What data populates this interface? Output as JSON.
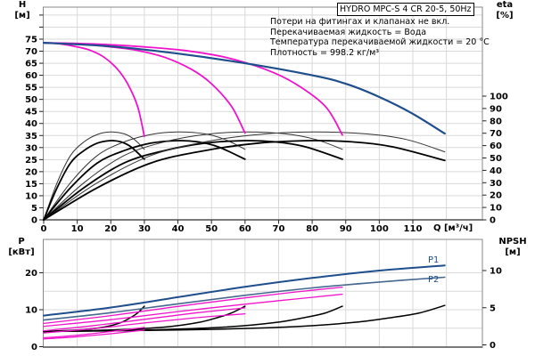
{
  "title": "HYDRO MPC-S 4 CR 20-5, 50Hz",
  "annotations": [
    "Потери на фитингах и клапанах не вкл.",
    "Перекачиваемая жидкость = Вода",
    "Температура перекачиваемой жидкости = 20 °C",
    "Плотность = 998.2 кг/м³"
  ],
  "axes": {
    "h_label": "H",
    "h_unit": "[м]",
    "eta_label": "eta",
    "eta_unit": "[%]",
    "q_label": "Q [м³/ч]",
    "p_label": "P",
    "p_unit": "[кВт]",
    "npsh_label": "NPSH",
    "npsh_unit": "[м]"
  },
  "curve_labels": {
    "p1": "P1",
    "p2": "P2"
  },
  "colors": {
    "head_curve": "#1f4e8c",
    "reduced_curve": "#f013cb",
    "p2_curve": "#46688f",
    "eta_npsh_curve": "#000000",
    "grid": "#d9d9d9",
    "spine": "#888888"
  },
  "chart_data": [
    {
      "type": "line",
      "title": "HYDRO MPC-S 4 CR 20-5, 50Hz",
      "xlabel": "Q [м³/ч]",
      "ylabel_left": "H [м]",
      "ylabel_right": "eta [%]",
      "xlim": [
        0,
        130
      ],
      "ylim_left": [
        0,
        88
      ],
      "ylim_right": [
        0,
        172
      ],
      "grid": true,
      "x_ticks": [
        0,
        10,
        20,
        30,
        40,
        50,
        60,
        70,
        80,
        90,
        100,
        110
      ],
      "y_ticks_left": [
        0,
        5,
        10,
        15,
        20,
        25,
        30,
        35,
        40,
        45,
        50,
        55,
        60,
        65,
        70,
        75
      ],
      "y_ticks_left_minor": [
        80,
        85
      ],
      "y_ticks_right": [
        0,
        10,
        20,
        30,
        40,
        50,
        60,
        70,
        80,
        90,
        100
      ],
      "series": [
        {
          "name": "eta-1-pump-thin",
          "axis": "right",
          "color": "#333333",
          "width": 1,
          "points": [
            [
              0,
              0
            ],
            [
              4,
              30
            ],
            [
              8,
              52
            ],
            [
              12,
              63
            ],
            [
              16,
              69
            ],
            [
              20,
              71
            ],
            [
              24,
              69.5
            ],
            [
              27,
              65
            ],
            [
              30,
              57
            ]
          ]
        },
        {
          "name": "eta-1-pump-thick",
          "axis": "right",
          "color": "#000000",
          "width": 1.8,
          "points": [
            [
              0,
              0
            ],
            [
              4,
              26
            ],
            [
              8,
              46
            ],
            [
              12,
              56
            ],
            [
              16,
              62
            ],
            [
              20,
              64
            ],
            [
              23,
              63
            ],
            [
              26,
              59
            ],
            [
              30,
              49
            ]
          ]
        },
        {
          "name": "eta-2-pumps-thin",
          "axis": "right",
          "color": "#333333",
          "width": 1,
          "points": [
            [
              0,
              0
            ],
            [
              8,
              30
            ],
            [
              16,
              52
            ],
            [
              24,
              63
            ],
            [
              32,
              69
            ],
            [
              40,
              71
            ],
            [
              48,
              69.5
            ],
            [
              54,
              65
            ],
            [
              60,
              57
            ]
          ]
        },
        {
          "name": "eta-2-pumps-thick",
          "axis": "right",
          "color": "#000000",
          "width": 1.8,
          "points": [
            [
              0,
              0
            ],
            [
              8,
              26
            ],
            [
              16,
              46
            ],
            [
              24,
              56
            ],
            [
              32,
              62
            ],
            [
              40,
              64
            ],
            [
              46,
              63
            ],
            [
              52,
              59
            ],
            [
              60,
              49
            ]
          ]
        },
        {
          "name": "eta-3-pumps-thin",
          "axis": "right",
          "color": "#333333",
          "width": 1,
          "points": [
            [
              0,
              0
            ],
            [
              12,
              30
            ],
            [
              24,
              52
            ],
            [
              36,
              63
            ],
            [
              48,
              69
            ],
            [
              60,
              71
            ],
            [
              72,
              69.5
            ],
            [
              81,
              65
            ],
            [
              89,
              57
            ]
          ]
        },
        {
          "name": "eta-3-pumps-thick",
          "axis": "right",
          "color": "#000000",
          "width": 1.8,
          "points": [
            [
              0,
              0
            ],
            [
              12,
              26
            ],
            [
              24,
              46
            ],
            [
              36,
              56
            ],
            [
              48,
              62
            ],
            [
              60,
              64
            ],
            [
              69,
              63
            ],
            [
              78,
              59
            ],
            [
              89,
              49
            ]
          ]
        },
        {
          "name": "eta-4-pumps-thin",
          "axis": "right",
          "color": "#333333",
          "width": 1,
          "points": [
            [
              0,
              0
            ],
            [
              16,
              30
            ],
            [
              32,
              52
            ],
            [
              48,
              63
            ],
            [
              64,
              69
            ],
            [
              80,
              71
            ],
            [
              96,
              69.5
            ],
            [
              108,
              65
            ],
            [
              119.5,
              55
            ]
          ]
        },
        {
          "name": "eta-4-pumps-thick",
          "axis": "right",
          "color": "#000000",
          "width": 1.8,
          "points": [
            [
              0,
              0
            ],
            [
              16,
              26
            ],
            [
              32,
              46
            ],
            [
              48,
              56
            ],
            [
              64,
              62
            ],
            [
              80,
              64
            ],
            [
              92,
              63
            ],
            [
              104,
              59
            ],
            [
              119.5,
              48
            ]
          ]
        },
        {
          "name": "head-1-pump",
          "axis": "left",
          "color": "#f013cb",
          "width": 1.8,
          "points": [
            [
              0,
              73.5
            ],
            [
              5,
              73
            ],
            [
              10,
              71.8
            ],
            [
              14,
              70.3
            ],
            [
              18,
              67.5
            ],
            [
              22,
              62.5
            ],
            [
              25,
              56.5
            ],
            [
              28,
              47
            ],
            [
              30,
              34.6
            ]
          ]
        },
        {
          "name": "head-2-pumps",
          "axis": "left",
          "color": "#f013cb",
          "width": 1.8,
          "points": [
            [
              0,
              73.5
            ],
            [
              10,
              73
            ],
            [
              20,
              71.8
            ],
            [
              28,
              70.3
            ],
            [
              36,
              67.5
            ],
            [
              44,
              62.5
            ],
            [
              50,
              56.5
            ],
            [
              56,
              47
            ],
            [
              60,
              36
            ]
          ]
        },
        {
          "name": "head-3-pumps",
          "axis": "left",
          "color": "#f013cb",
          "width": 1.8,
          "points": [
            [
              0,
              73.5
            ],
            [
              15,
              73
            ],
            [
              30,
              71.8
            ],
            [
              42,
              70.3
            ],
            [
              54,
              67.5
            ],
            [
              66,
              62.5
            ],
            [
              75,
              56.5
            ],
            [
              84,
              47
            ],
            [
              89,
              35.2
            ]
          ]
        },
        {
          "name": "head-4-pumps",
          "axis": "left",
          "color": "#1f4e8c",
          "width": 2.2,
          "points": [
            [
              0,
              73.5
            ],
            [
              20,
              72
            ],
            [
              40,
              69
            ],
            [
              60,
              65
            ],
            [
              80,
              60
            ],
            [
              90,
              56.5
            ],
            [
              100,
              51
            ],
            [
              110,
              44
            ],
            [
              119.5,
              35.8
            ]
          ]
        }
      ]
    },
    {
      "type": "line",
      "xlabel": "",
      "ylabel_left": "P [кВт]",
      "ylabel_right": "NPSH [м]",
      "xlim": [
        0,
        130
      ],
      "ylim_left": [
        0,
        29
      ],
      "ylim_right": [
        0,
        14.5
      ],
      "grid": true,
      "x_ticks": [],
      "y_ticks_left": [
        0,
        10,
        20
      ],
      "y_ticks_right": [
        0,
        5,
        10
      ],
      "series": [
        {
          "name": "npsh-1-pump",
          "axis": "right",
          "color": "#000000",
          "width": 1.5,
          "points": [
            [
              0,
              1.8
            ],
            [
              10,
              2.0
            ],
            [
              18,
              2.4
            ],
            [
              23,
              3.0
            ],
            [
              26,
              3.7
            ],
            [
              28,
              4.3
            ],
            [
              30,
              5.2
            ]
          ]
        },
        {
          "name": "npsh-2-pumps",
          "axis": "right",
          "color": "#000000",
          "width": 1.5,
          "points": [
            [
              0,
              1.8
            ],
            [
              20,
              2.0
            ],
            [
              36,
              2.4
            ],
            [
              46,
              3.0
            ],
            [
              52,
              3.7
            ],
            [
              56,
              4.3
            ],
            [
              60,
              5.2
            ]
          ]
        },
        {
          "name": "npsh-3-pumps",
          "axis": "right",
          "color": "#000000",
          "width": 1.5,
          "points": [
            [
              0,
              1.8
            ],
            [
              30,
              2.0
            ],
            [
              54,
              2.4
            ],
            [
              69,
              3.0
            ],
            [
              78,
              3.7
            ],
            [
              84,
              4.3
            ],
            [
              89,
              5.2
            ]
          ]
        },
        {
          "name": "npsh-4-pumps",
          "axis": "right",
          "color": "#000000",
          "width": 1.5,
          "points": [
            [
              0,
              1.8
            ],
            [
              40,
              2.0
            ],
            [
              72,
              2.4
            ],
            [
              92,
              3.0
            ],
            [
              104,
              3.7
            ],
            [
              112,
              4.3
            ],
            [
              119.5,
              5.3
            ]
          ]
        },
        {
          "name": "power-p2-1-pump",
          "axis": "left",
          "color": "#f013cb",
          "width": 1.3,
          "points": [
            [
              0,
              2.1
            ],
            [
              10,
              2.7
            ],
            [
              20,
              3.5
            ],
            [
              30,
              4.5
            ]
          ]
        },
        {
          "name": "power-p1-1-pump",
          "axis": "left",
          "color": "#f013cb",
          "width": 1.3,
          "points": [
            [
              0,
              2.4
            ],
            [
              10,
              3.1
            ],
            [
              20,
              4.1
            ],
            [
              30,
              5.2
            ]
          ]
        },
        {
          "name": "power-p2-2-pumps",
          "axis": "left",
          "color": "#f013cb",
          "width": 1.3,
          "points": [
            [
              0,
              3.7
            ],
            [
              15,
              4.9
            ],
            [
              30,
              6.4
            ],
            [
              45,
              7.8
            ],
            [
              60,
              8.9
            ]
          ]
        },
        {
          "name": "power-p1-2-pumps",
          "axis": "left",
          "color": "#f013cb",
          "width": 1.3,
          "points": [
            [
              0,
              4.3
            ],
            [
              15,
              5.7
            ],
            [
              30,
              7.4
            ],
            [
              45,
              9.1
            ],
            [
              60,
              10.5
            ]
          ]
        },
        {
          "name": "power-p2-3-pumps",
          "axis": "left",
          "color": "#f013cb",
          "width": 1.3,
          "points": [
            [
              0,
              5.5
            ],
            [
              20,
              7.3
            ],
            [
              40,
              9.5
            ],
            [
              60,
              11.5
            ],
            [
              75,
              12.9
            ],
            [
              89,
              14.2
            ]
          ]
        },
        {
          "name": "power-p1-3-pumps",
          "axis": "left",
          "color": "#f013cb",
          "width": 1.3,
          "points": [
            [
              0,
              6.3
            ],
            [
              20,
              8.4
            ],
            [
              40,
              10.9
            ],
            [
              60,
              13.2
            ],
            [
              75,
              14.8
            ],
            [
              89,
              16.1
            ]
          ]
        },
        {
          "name": "power-p2-4-pumps",
          "axis": "left",
          "color": "#46688f",
          "width": 1.6,
          "points": [
            [
              0,
              7.2
            ],
            [
              20,
              9.2
            ],
            [
              40,
              11.6
            ],
            [
              60,
              13.9
            ],
            [
              80,
              15.9
            ],
            [
              100,
              17.5
            ],
            [
              119.5,
              18.8
            ]
          ]
        },
        {
          "name": "power-p1-4-pumps",
          "axis": "left",
          "color": "#1f4e8c",
          "width": 2,
          "points": [
            [
              0,
              8.4
            ],
            [
              20,
              10.6
            ],
            [
              40,
              13.4
            ],
            [
              60,
              16.2
            ],
            [
              80,
              18.6
            ],
            [
              100,
              20.6
            ],
            [
              119.5,
              22
            ]
          ]
        }
      ]
    }
  ]
}
